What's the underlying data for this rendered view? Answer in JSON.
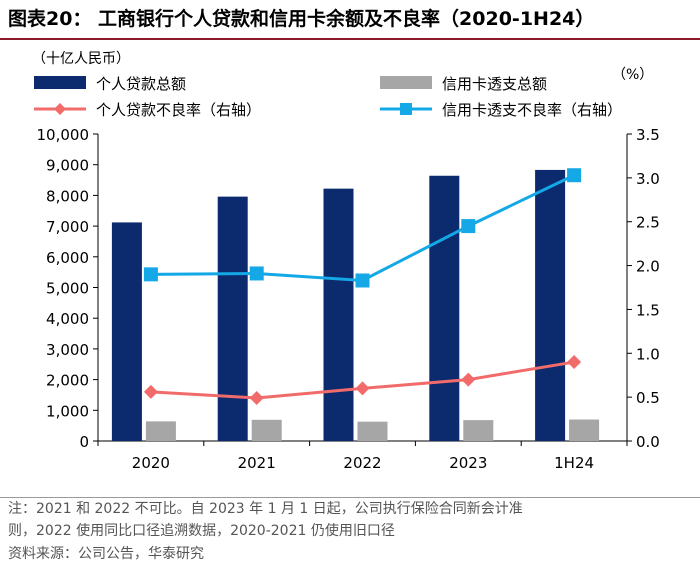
{
  "title": "图表20： 工商银行个人贷款和信用卡余额及不良率（2020-1H24）",
  "notes": [
    "注：2021 和 2022 不可比。自 2023 年 1 月 1 日起，公司执行保险合同新会计准",
    "则，2022 使用同比口径追溯数据，2020-2021 仍使用旧口径"
  ],
  "source": "资料来源：公司公告，华泰研究",
  "colors": {
    "navy": "#0c2a6e",
    "gray": "#a6a6a6",
    "red": "#f26b6b",
    "blue": "#14a8e6",
    "title_rule": "#8a1a2a"
  },
  "chart_data": {
    "type": "bar",
    "categories": [
      "2020",
      "2021",
      "2022",
      "2023",
      "1H24"
    ],
    "left_unit": "（十亿人民币）",
    "right_unit": "（%）",
    "y_left": {
      "range": [
        0,
        10000
      ],
      "ticks": [
        "0",
        "1,000",
        "2,000",
        "3,000",
        "4,000",
        "5,000",
        "6,000",
        "7,000",
        "8,000",
        "9,000",
        "10,000"
      ]
    },
    "y_right": {
      "range": [
        0,
        3.5
      ],
      "ticks": [
        "0.0",
        "0.5",
        "1.0",
        "1.5",
        "2.0",
        "2.5",
        "3.0",
        "3.5"
      ]
    },
    "legend_placement": "top",
    "series": [
      {
        "name": "个人贷款总额",
        "kind": "bar",
        "axis": "left",
        "color": "#0c2a6e",
        "values": [
          7120,
          7960,
          8220,
          8640,
          8830
        ]
      },
      {
        "name": "信用卡透支总额",
        "kind": "bar",
        "axis": "left",
        "color": "#a6a6a6",
        "values": [
          640,
          690,
          630,
          680,
          700
        ]
      },
      {
        "name": "个人贷款不良率（右轴）",
        "kind": "line",
        "marker": "diamond",
        "axis": "right",
        "color": "#f26b6b",
        "values": [
          0.56,
          0.49,
          0.6,
          0.7,
          0.9
        ]
      },
      {
        "name": "信用卡透支不良率（右轴）",
        "kind": "line",
        "marker": "square",
        "axis": "right",
        "color": "#14a8e6",
        "values": [
          1.9,
          1.91,
          1.83,
          2.45,
          3.03
        ]
      }
    ]
  }
}
